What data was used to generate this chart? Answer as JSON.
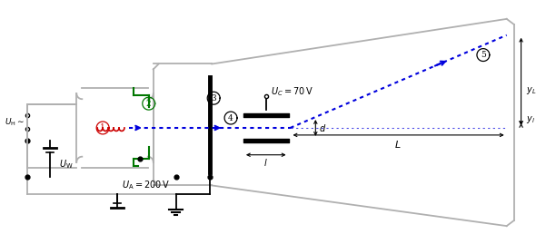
{
  "bg": "#ffffff",
  "gray": "#b0b0b0",
  "black": "#000000",
  "blue": "#0000dd",
  "red": "#cc0000",
  "green": "#007700",
  "UH": "U_\\mathrm{H}",
  "UW": "U_\\mathrm{W}",
  "UA": "U_\\mathrm{A} = 200\\,\\mathrm{V}",
  "UC": "U_C = 70\\,\\mathrm{V}",
  "L": "L",
  "l": "l",
  "d": "d",
  "yL": "y_L",
  "yl": "y_l",
  "fig_w": 5.9,
  "fig_h": 2.69,
  "dpi": 100
}
